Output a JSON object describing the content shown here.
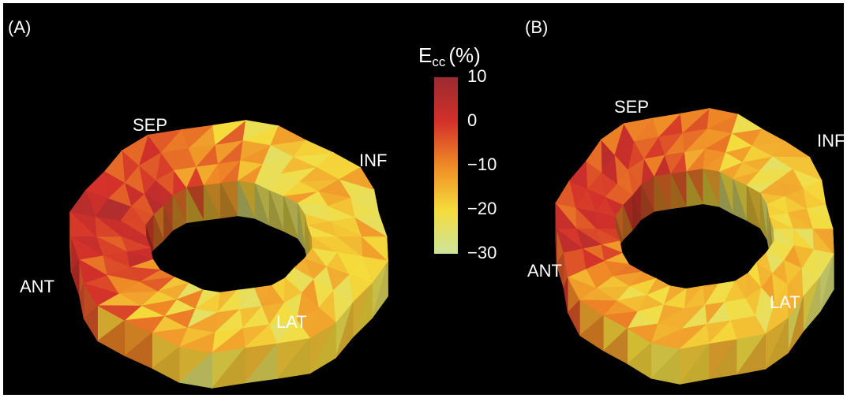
{
  "panels": [
    {
      "label": "(A)",
      "regions": {
        "sep": "SEP",
        "inf": "INF",
        "ant": "ANT",
        "lat": "LAT"
      }
    },
    {
      "label": "(B)",
      "regions": {
        "sep": "SEP",
        "inf": "INF",
        "ant": "ANT",
        "lat": "LAT"
      }
    }
  ],
  "colorbar": {
    "title": "E",
    "title_subscript": "cc",
    "unit": "(%)",
    "range": [
      -30,
      10
    ],
    "ticks": [
      10,
      0,
      {
        "value": -10,
        "label": "−10"
      },
      {
        "value": -20,
        "label": "−20"
      },
      {
        "value": -30,
        "label": "−30"
      }
    ],
    "colors": [
      "#9a2a30",
      "#d3302a",
      "#ef8a26",
      "#f5dc3c",
      "#cde49c"
    ]
  }
}
